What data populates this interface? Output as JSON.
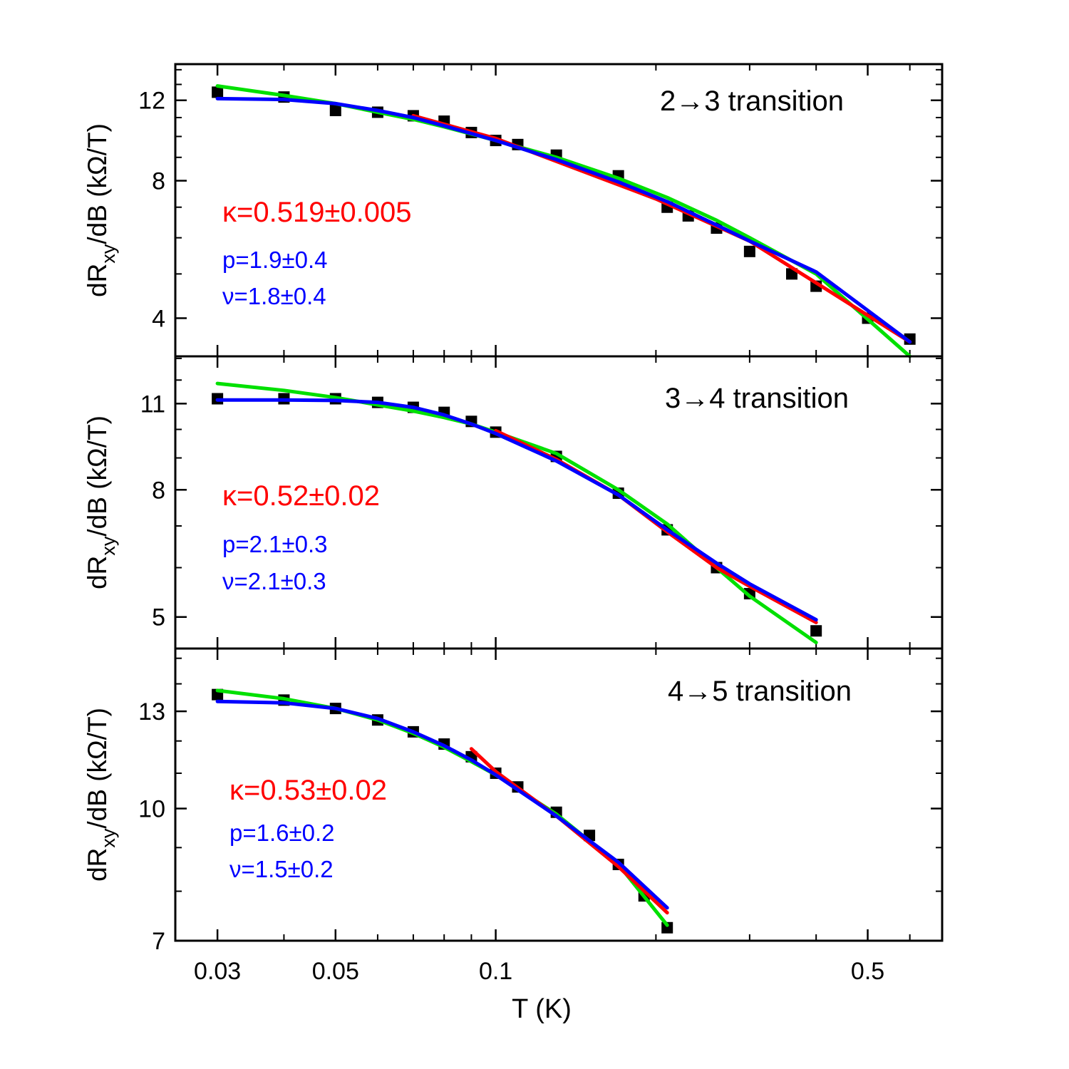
{
  "chart_data": {
    "type": "scatter",
    "x_scale": "log",
    "y_scale": "log",
    "xlabel": "T (K)",
    "xlim": [
      0.025,
      0.69
    ],
    "x_ticks": [
      {
        "value": 0.03,
        "label": "0.03"
      },
      {
        "value": 0.05,
        "label": "0.05"
      },
      {
        "value": 0.1,
        "label": "0.1"
      },
      {
        "value": 0.5,
        "label": "0.5"
      }
    ],
    "series_colors": {
      "data": "#000000",
      "power_law_fit": "#ff0000",
      "scaling_fit": "#0000ff",
      "alt_fit": "#00e000"
    },
    "panels": [
      {
        "title": "2→3 transition",
        "ylabel_main": "dR",
        "ylabel_sub": "xy",
        "ylabel_tail": "/dB (kΩ/T)",
        "ylim": [
          3.3,
          14.4
        ],
        "y_ticks": [
          {
            "value": 4,
            "label": "4"
          },
          {
            "value": 8,
            "label": "8"
          },
          {
            "value": 12,
            "label": "12"
          }
        ],
        "kappa_label": "κ=0.519±0.005",
        "p_label": "p=1.9±0.4",
        "nu_label": "ν=1.8±0.4",
        "data": {
          "x": [
            0.03,
            0.04,
            0.05,
            0.06,
            0.07,
            0.08,
            0.09,
            0.1,
            0.11,
            0.13,
            0.17,
            0.21,
            0.23,
            0.26,
            0.3,
            0.36,
            0.4,
            0.5,
            0.6
          ],
          "y": [
            12.5,
            12.2,
            11.4,
            11.3,
            11.1,
            10.8,
            10.2,
            9.8,
            9.6,
            9.1,
            8.2,
            7.0,
            6.7,
            6.3,
            5.6,
            5.0,
            4.7,
            4.0,
            3.6
          ]
        },
        "red_fit": {
          "x": [
            0.07,
            0.1,
            0.2,
            0.3,
            0.6
          ],
          "y": [
            11.1,
            9.9,
            7.3,
            5.9,
            3.55
          ]
        },
        "blue_fit": {
          "x": [
            0.03,
            0.04,
            0.05,
            0.06,
            0.07,
            0.08,
            0.1,
            0.13,
            0.17,
            0.21,
            0.26,
            0.3,
            0.4,
            0.6
          ],
          "y": [
            12.1,
            12.05,
            11.8,
            11.4,
            11.0,
            10.55,
            9.8,
            8.9,
            7.95,
            7.2,
            6.4,
            5.9,
            5.05,
            3.55
          ]
        },
        "green_fit": {
          "x": [
            0.03,
            0.04,
            0.05,
            0.06,
            0.07,
            0.08,
            0.1,
            0.13,
            0.17,
            0.21,
            0.26,
            0.3,
            0.4,
            0.6
          ],
          "y": [
            12.9,
            12.3,
            11.8,
            11.3,
            10.9,
            10.5,
            9.8,
            9.0,
            8.1,
            7.35,
            6.55,
            6.0,
            5.0,
            3.3
          ]
        }
      },
      {
        "title": "3→4 transition",
        "ylabel_main": "dR",
        "ylabel_sub": "xy",
        "ylabel_tail": "/dB (kΩ/T)",
        "ylim": [
          4.45,
          13.1
        ],
        "y_ticks": [
          {
            "value": 5,
            "label": "5"
          },
          {
            "value": 8,
            "label": "8"
          },
          {
            "value": 11,
            "label": "11"
          }
        ],
        "kappa_label": "κ=0.52±0.02",
        "p_label": "p=2.1±0.3",
        "nu_label": "ν=2.1±0.3",
        "data": {
          "x": [
            0.03,
            0.04,
            0.05,
            0.06,
            0.07,
            0.08,
            0.09,
            0.1,
            0.13,
            0.17,
            0.21,
            0.26,
            0.3,
            0.4
          ],
          "y": [
            11.2,
            11.2,
            11.2,
            11.05,
            10.85,
            10.65,
            10.3,
            9.9,
            9.05,
            7.9,
            6.9,
            6.0,
            5.45,
            4.75
          ]
        },
        "red_fit": {
          "x": [
            0.1,
            0.13,
            0.17,
            0.21,
            0.26,
            0.3,
            0.4
          ],
          "y": [
            9.95,
            8.95,
            7.85,
            6.85,
            6.0,
            5.6,
            4.9
          ]
        },
        "blue_fit": {
          "x": [
            0.03,
            0.04,
            0.05,
            0.06,
            0.07,
            0.08,
            0.09,
            0.1,
            0.13,
            0.17,
            0.21,
            0.26,
            0.3,
            0.4
          ],
          "y": [
            11.15,
            11.15,
            11.13,
            11.05,
            10.85,
            10.55,
            10.2,
            9.85,
            8.9,
            7.85,
            6.9,
            6.1,
            5.65,
            4.95
          ]
        },
        "green_fit": {
          "x": [
            0.03,
            0.04,
            0.05,
            0.06,
            0.07,
            0.08,
            0.09,
            0.1,
            0.13,
            0.17,
            0.21,
            0.26,
            0.3,
            0.4
          ],
          "y": [
            11.85,
            11.55,
            11.25,
            10.95,
            10.7,
            10.45,
            10.2,
            9.9,
            9.15,
            8.0,
            7.05,
            6.0,
            5.4,
            4.55
          ]
        }
      },
      {
        "title": "4→5 transition",
        "ylabel_main": "dR",
        "ylabel_sub": "xy",
        "ylabel_tail": "/dB (kΩ/T)",
        "ylim": [
          7.0,
          15.4
        ],
        "y_ticks": [
          {
            "value": 7,
            "label": "7"
          },
          {
            "value": 10,
            "label": "10"
          },
          {
            "value": 13,
            "label": "13"
          }
        ],
        "kappa_label": "κ=0.53±0.02",
        "p_label": "p=1.6±0.2",
        "nu_label": "ν=1.5±0.2",
        "data": {
          "x": [
            0.03,
            0.04,
            0.05,
            0.06,
            0.07,
            0.08,
            0.09,
            0.1,
            0.11,
            0.13,
            0.15,
            0.17,
            0.19,
            0.21
          ],
          "y": [
            13.6,
            13.4,
            13.1,
            12.7,
            12.3,
            11.9,
            11.5,
            11.0,
            10.6,
            9.9,
            9.3,
            8.6,
            7.9,
            7.25
          ]
        },
        "red_fit": {
          "x": [
            0.09,
            0.1,
            0.13,
            0.17,
            0.21
          ],
          "y": [
            11.75,
            11.05,
            9.8,
            8.55,
            7.55
          ]
        },
        "blue_fit": {
          "x": [
            0.03,
            0.04,
            0.05,
            0.06,
            0.07,
            0.08,
            0.09,
            0.1,
            0.13,
            0.17,
            0.21
          ],
          "y": [
            13.35,
            13.3,
            13.1,
            12.75,
            12.3,
            11.85,
            11.4,
            10.95,
            9.8,
            8.65,
            7.65
          ]
        },
        "green_fit": {
          "x": [
            0.03,
            0.04,
            0.05,
            0.06,
            0.07,
            0.08,
            0.09,
            0.1,
            0.13,
            0.17,
            0.21
          ],
          "y": [
            13.75,
            13.45,
            13.1,
            12.7,
            12.25,
            11.8,
            11.35,
            10.95,
            9.85,
            8.6,
            7.3
          ]
        }
      }
    ]
  }
}
